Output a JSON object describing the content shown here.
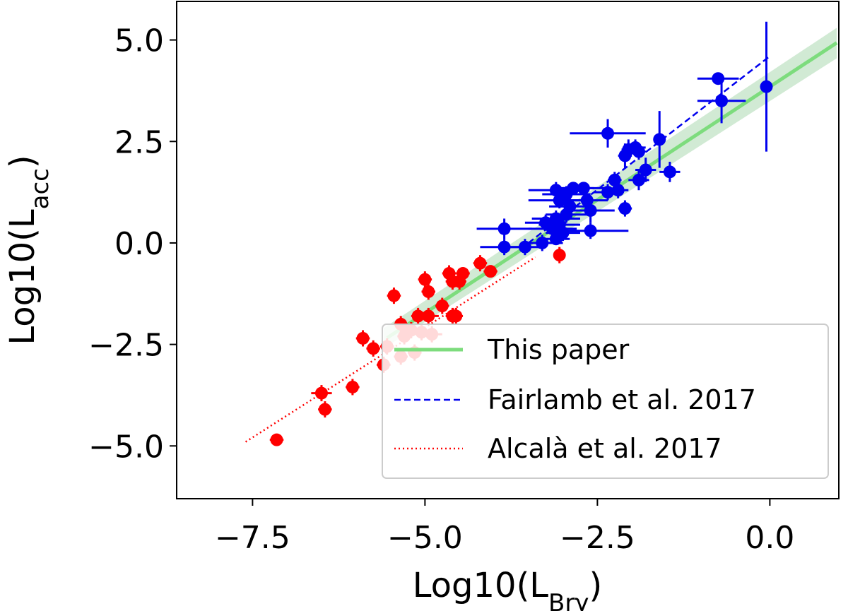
{
  "chart_data": {
    "type": "scatter",
    "xlabel_main": "Log10(L",
    "xlabel_sub": "Brγ",
    "xlabel_close": ")",
    "ylabel_main": "Log10(L",
    "ylabel_sub": "acc",
    "ylabel_close": ")",
    "xlim": [
      -8.6,
      1.0
    ],
    "ylim": [
      -6.3,
      5.95
    ],
    "xticks": [
      -7.5,
      -5.0,
      -2.5,
      0.0
    ],
    "xtick_labels": [
      "−7.5",
      "−5.0",
      "−2.5",
      "0.0"
    ],
    "yticks": [
      -5.0,
      -2.5,
      0.0,
      2.5,
      5.0
    ],
    "ytick_labels": [
      "−5.0",
      "−2.5",
      "0.0",
      "2.5",
      "5.0"
    ],
    "legend_position": "lower-right",
    "colors": {
      "fit": "#7ddc7d",
      "fit_band": "#2e9e3a",
      "fairlamb": "#0000ee",
      "alcala": "#ff0000",
      "blue_points": "#0000ee",
      "red_points": "#ff0000"
    },
    "lines": [
      {
        "name": "This paper",
        "style": "solid",
        "color": "#7ddc7d",
        "x": [
          -5.55,
          0.97
        ],
        "y": [
          -2.34,
          4.93
        ]
      },
      {
        "name": "Fairlamb et al. 2017",
        "style": "dashed",
        "color": "#0000ee",
        "x": [
          -3.5,
          0.0
        ],
        "y": [
          -0.0,
          4.6
        ]
      },
      {
        "name": "Alcalà et al. 2017",
        "style": "dotted",
        "color": "#ff0000",
        "x": [
          -7.6,
          -3.4
        ],
        "y": [
          -4.9,
          -0.35
        ]
      }
    ],
    "band": {
      "x": [
        -5.6,
        0.97
      ],
      "y_low_left": -2.6,
      "y_high_left": -2.1,
      "y_low_right": 4.55,
      "y_high_right": 5.3
    },
    "series": [
      {
        "name": "Fairlamb et al. 2017",
        "color": "#0000ee",
        "points": [
          {
            "x": -0.75,
            "y": 4.05,
            "xerr": 0.3,
            "yerr": 0.15
          },
          {
            "x": -0.7,
            "y": 3.5,
            "xerr": 0.35,
            "yerr": 0.55
          },
          {
            "x": -0.05,
            "y": 3.85,
            "xerr": 0.0,
            "yerr": 1.6
          },
          {
            "x": -2.35,
            "y": 2.7,
            "xerr": 0.55,
            "yerr": 0.35
          },
          {
            "x": -1.6,
            "y": 2.55,
            "xerr": 0.0,
            "yerr": 0.7
          },
          {
            "x": -2.1,
            "y": 2.15,
            "xerr": 0.1,
            "yerr": 0.3
          },
          {
            "x": -2.05,
            "y": 2.3,
            "xerr": 0.1,
            "yerr": 0.25
          },
          {
            "x": -1.95,
            "y": 2.35,
            "xerr": 0.15,
            "yerr": 0.2
          },
          {
            "x": -1.9,
            "y": 2.25,
            "xerr": 0.1,
            "yerr": 0.2
          },
          {
            "x": -1.8,
            "y": 1.8,
            "xerr": 0.15,
            "yerr": 0.3
          },
          {
            "x": -1.9,
            "y": 1.55,
            "xerr": 0.15,
            "yerr": 0.25
          },
          {
            "x": -2.25,
            "y": 1.55,
            "xerr": 0.1,
            "yerr": 0.2
          },
          {
            "x": -1.45,
            "y": 1.75,
            "xerr": 0.15,
            "yerr": 0.25
          },
          {
            "x": -2.2,
            "y": 1.3,
            "xerr": 0.15,
            "yerr": 0.2
          },
          {
            "x": -2.35,
            "y": 1.25,
            "xerr": 0.2,
            "yerr": 0.2
          },
          {
            "x": -2.1,
            "y": 0.85,
            "xerr": 0.1,
            "yerr": 0.2
          },
          {
            "x": -2.7,
            "y": 1.35,
            "xerr": 0.3,
            "yerr": 0.15
          },
          {
            "x": -2.85,
            "y": 1.35,
            "xerr": 0.3,
            "yerr": 0.15
          },
          {
            "x": -2.65,
            "y": 1.05,
            "xerr": 0.3,
            "yerr": 0.15
          },
          {
            "x": -2.6,
            "y": 0.8,
            "xerr": 0.35,
            "yerr": 0.3
          },
          {
            "x": -3.1,
            "y": 1.3,
            "xerr": 0.4,
            "yerr": 0.2
          },
          {
            "x": -2.95,
            "y": 1.2,
            "xerr": 0.35,
            "yerr": 0.2
          },
          {
            "x": -3.05,
            "y": 1.05,
            "xerr": 0.45,
            "yerr": 0.2
          },
          {
            "x": -2.9,
            "y": 0.9,
            "xerr": 0.3,
            "yerr": 0.2
          },
          {
            "x": -2.95,
            "y": 0.7,
            "xerr": 0.3,
            "yerr": 0.2
          },
          {
            "x": -3.1,
            "y": 0.6,
            "xerr": 0.35,
            "yerr": 0.2
          },
          {
            "x": -3.05,
            "y": 0.45,
            "xerr": 0.3,
            "yerr": 0.2
          },
          {
            "x": -3.15,
            "y": 0.35,
            "xerr": 0.35,
            "yerr": 0.2
          },
          {
            "x": -3.0,
            "y": 0.25,
            "xerr": 0.25,
            "yerr": 0.2
          },
          {
            "x": -3.25,
            "y": 0.5,
            "xerr": 0.3,
            "yerr": 0.2
          },
          {
            "x": -2.6,
            "y": 0.3,
            "xerr": 0.55,
            "yerr": 0.2
          },
          {
            "x": -3.3,
            "y": 0.0,
            "xerr": 0.3,
            "yerr": 0.2
          },
          {
            "x": -3.55,
            "y": -0.1,
            "xerr": 0.3,
            "yerr": 0.2
          },
          {
            "x": -3.85,
            "y": 0.35,
            "xerr": 0.4,
            "yerr": 0.25
          },
          {
            "x": -3.85,
            "y": -0.1,
            "xerr": 0.35,
            "yerr": 0.2
          },
          {
            "x": -3.1,
            "y": 0.1,
            "xerr": 0.2,
            "yerr": 0.15
          }
        ]
      },
      {
        "name": "Alcalà et al. 2017",
        "color": "#ff0000",
        "points": [
          {
            "x": -3.05,
            "y": -0.3,
            "xerr": 0.0,
            "yerr": 0.2
          },
          {
            "x": -4.2,
            "y": -0.5,
            "xerr": 0.1,
            "yerr": 0.2
          },
          {
            "x": -4.05,
            "y": -0.7,
            "xerr": 0.1,
            "yerr": 0.15
          },
          {
            "x": -4.45,
            "y": -0.75,
            "xerr": 0.1,
            "yerr": 0.15
          },
          {
            "x": -4.65,
            "y": -0.75,
            "xerr": 0.1,
            "yerr": 0.2
          },
          {
            "x": -4.5,
            "y": -0.95,
            "xerr": 0.1,
            "yerr": 0.2
          },
          {
            "x": -4.6,
            "y": -0.95,
            "xerr": 0.1,
            "yerr": 0.2
          },
          {
            "x": -5.0,
            "y": -0.9,
            "xerr": 0.1,
            "yerr": 0.2
          },
          {
            "x": -4.95,
            "y": -1.2,
            "xerr": 0.1,
            "yerr": 0.2
          },
          {
            "x": -5.45,
            "y": -1.3,
            "xerr": 0.1,
            "yerr": 0.2
          },
          {
            "x": -4.75,
            "y": -1.55,
            "xerr": 0.1,
            "yerr": 0.2
          },
          {
            "x": -5.1,
            "y": -1.8,
            "xerr": 0.1,
            "yerr": 0.2
          },
          {
            "x": -4.95,
            "y": -1.8,
            "xerr": 0.15,
            "yerr": 0.2
          },
          {
            "x": -4.6,
            "y": -1.8,
            "xerr": 0.1,
            "yerr": 0.2
          },
          {
            "x": -4.55,
            "y": -1.8,
            "xerr": 0.1,
            "yerr": 0.2
          },
          {
            "x": -5.35,
            "y": -2.0,
            "xerr": 0.1,
            "yerr": 0.2
          },
          {
            "x": -5.2,
            "y": -2.15,
            "xerr": 0.15,
            "yerr": 0.2
          },
          {
            "x": -5.05,
            "y": -2.2,
            "xerr": 0.1,
            "yerr": 0.2
          },
          {
            "x": -5.3,
            "y": -2.3,
            "xerr": 0.1,
            "yerr": 0.2
          },
          {
            "x": -4.9,
            "y": -2.25,
            "xerr": 0.15,
            "yerr": 0.2
          },
          {
            "x": -5.9,
            "y": -2.35,
            "xerr": 0.1,
            "yerr": 0.2
          },
          {
            "x": -5.75,
            "y": -2.6,
            "xerr": 0.1,
            "yerr": 0.2
          },
          {
            "x": -5.55,
            "y": -2.55,
            "xerr": 0.1,
            "yerr": 0.2
          },
          {
            "x": -5.35,
            "y": -2.8,
            "xerr": 0.1,
            "yerr": 0.2
          },
          {
            "x": -5.6,
            "y": -3.0,
            "xerr": 0.1,
            "yerr": 0.2
          },
          {
            "x": -5.15,
            "y": -2.7,
            "xerr": 0.1,
            "yerr": 0.2
          },
          {
            "x": -6.05,
            "y": -3.55,
            "xerr": 0.1,
            "yerr": 0.2
          },
          {
            "x": -6.5,
            "y": -3.7,
            "xerr": 0.15,
            "yerr": 0.2
          },
          {
            "x": -6.45,
            "y": -4.1,
            "xerr": 0.1,
            "yerr": 0.2
          },
          {
            "x": -7.15,
            "y": -4.85,
            "xerr": 0.1,
            "yerr": 0.15
          }
        ]
      }
    ]
  }
}
